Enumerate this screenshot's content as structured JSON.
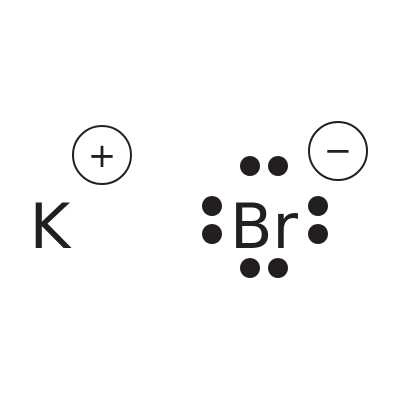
{
  "diagram": {
    "cation": {
      "symbol": "K",
      "charge": "+"
    },
    "anion": {
      "symbol": "Br",
      "charge": "−",
      "lone_electrons": 8
    },
    "colors": {
      "ink": "#231f20",
      "background": "#ffffff"
    }
  }
}
